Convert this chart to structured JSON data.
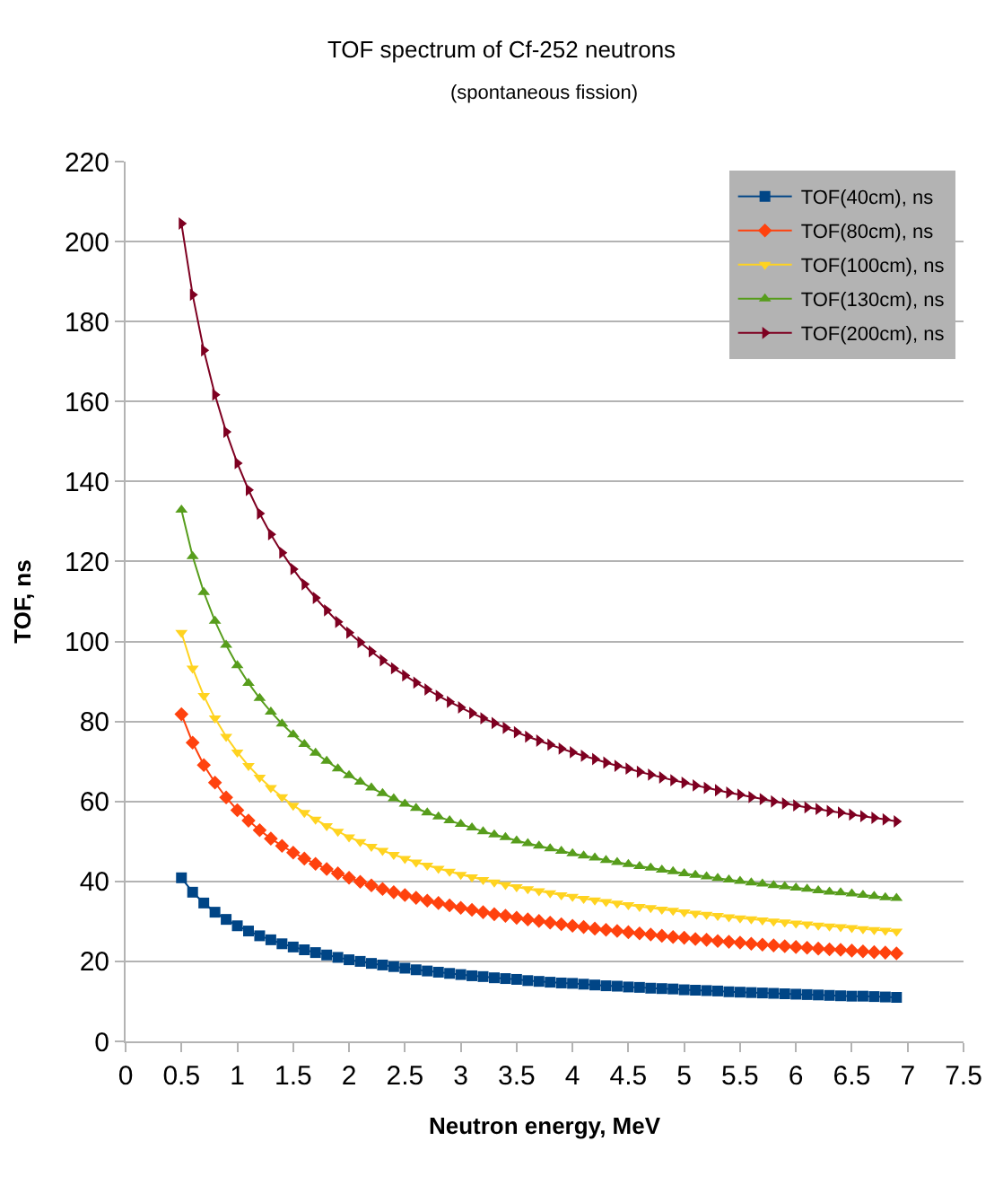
{
  "chart_data": {
    "type": "line",
    "title": "TOF spectrum of Cf-252 neutrons",
    "subtitle": "(spontaneous fission)",
    "xlabel": "Neutron energy, MeV",
    "ylabel": "TOF, ns",
    "x": [
      0.5,
      0.6,
      0.7,
      0.8,
      0.9,
      1.0,
      1.1,
      1.2,
      1.3,
      1.4,
      1.5,
      1.6,
      1.7,
      1.8,
      1.9,
      2.0,
      2.1,
      2.2,
      2.3,
      2.4,
      2.5,
      2.6,
      2.7,
      2.8,
      2.9,
      3.0,
      3.1,
      3.2,
      3.3,
      3.4,
      3.5,
      3.6,
      3.7,
      3.8,
      3.9,
      4.0,
      4.1,
      4.2,
      4.3,
      4.4,
      4.5,
      4.6,
      4.7,
      4.8,
      4.9,
      5.0,
      5.1,
      5.2,
      5.3,
      5.4,
      5.5,
      5.6,
      5.7,
      5.8,
      5.9,
      6.0,
      6.1,
      6.2,
      6.3,
      6.4,
      6.5,
      6.6,
      6.7,
      6.8,
      6.9
    ],
    "series": [
      {
        "name": "TOF(40cm), ns",
        "color": "#004586",
        "marker": "square",
        "values": [
          40.9,
          37.3,
          34.6,
          32.3,
          30.5,
          28.9,
          27.6,
          26.4,
          25.4,
          24.4,
          23.6,
          22.9,
          22.2,
          21.6,
          21.0,
          20.4,
          20.0,
          19.5,
          19.1,
          18.7,
          18.3,
          17.9,
          17.6,
          17.3,
          17.0,
          16.7,
          16.4,
          16.2,
          15.9,
          15.7,
          15.5,
          15.2,
          15.0,
          14.8,
          14.6,
          14.5,
          14.3,
          14.1,
          13.9,
          13.8,
          13.6,
          13.5,
          13.3,
          13.2,
          13.1,
          12.9,
          12.8,
          12.7,
          12.6,
          12.4,
          12.3,
          12.2,
          12.1,
          12.0,
          11.9,
          11.8,
          11.7,
          11.6,
          11.5,
          11.4,
          11.3,
          11.3,
          11.2,
          11.1,
          11.0
        ]
      },
      {
        "name": "TOF(80cm), ns",
        "color": "#ff420e",
        "marker": "diamond",
        "values": [
          81.8,
          74.7,
          69.1,
          64.7,
          61.0,
          57.8,
          55.2,
          52.8,
          50.7,
          48.9,
          47.2,
          45.7,
          44.4,
          43.1,
          42.0,
          40.9,
          39.9,
          39.0,
          38.1,
          37.3,
          36.6,
          35.9,
          35.2,
          34.6,
          34.0,
          33.4,
          32.9,
          32.3,
          31.8,
          31.4,
          30.9,
          30.5,
          30.1,
          29.7,
          29.3,
          28.9,
          28.6,
          28.2,
          27.9,
          27.6,
          27.3,
          27.0,
          26.7,
          26.4,
          26.1,
          25.9,
          25.6,
          25.4,
          25.1,
          24.9,
          24.7,
          24.4,
          24.2,
          24.0,
          23.8,
          23.6,
          23.4,
          23.2,
          23.0,
          22.9,
          22.7,
          22.5,
          22.3,
          22.2,
          22.0
        ]
      },
      {
        "name": "TOF(100cm), ns",
        "color": "#ffd320",
        "marker": "triangle-down",
        "values": [
          102.2,
          93.3,
          86.4,
          80.8,
          76.2,
          72.3,
          68.9,
          66.0,
          63.4,
          61.1,
          59.0,
          57.2,
          55.5,
          53.9,
          52.5,
          51.1,
          49.9,
          48.7,
          47.7,
          46.7,
          45.7,
          44.8,
          44.0,
          43.2,
          42.5,
          41.7,
          41.1,
          40.4,
          39.8,
          39.2,
          38.6,
          38.1,
          37.6,
          37.1,
          36.6,
          36.2,
          35.7,
          35.3,
          34.9,
          34.5,
          34.1,
          33.7,
          33.4,
          33.0,
          32.7,
          32.3,
          32.0,
          31.7,
          31.4,
          31.1,
          30.8,
          30.6,
          30.3,
          30.0,
          29.8,
          29.5,
          29.3,
          29.0,
          28.8,
          28.6,
          28.4,
          28.1,
          27.9,
          27.7,
          27.5
        ]
      },
      {
        "name": "TOF(130cm), ns",
        "color": "#579d1c",
        "marker": "triangle",
        "values": [
          132.9,
          121.3,
          112.3,
          105.1,
          99.1,
          94.0,
          89.6,
          85.8,
          82.4,
          79.4,
          76.7,
          74.3,
          72.1,
          70.1,
          68.2,
          66.5,
          64.9,
          63.4,
          62.0,
          60.7,
          59.4,
          58.3,
          57.2,
          56.2,
          55.2,
          54.3,
          53.4,
          52.5,
          51.7,
          51.0,
          50.2,
          49.5,
          48.9,
          48.2,
          47.6,
          47.0,
          46.4,
          45.9,
          45.3,
          44.8,
          44.3,
          43.8,
          43.4,
          42.9,
          42.5,
          42.0,
          41.6,
          41.2,
          40.8,
          40.4,
          40.1,
          39.7,
          39.4,
          39.0,
          38.7,
          38.4,
          38.1,
          37.7,
          37.4,
          37.2,
          36.9,
          36.6,
          36.3,
          36.0,
          35.8
        ]
      },
      {
        "name": "TOF(200cm), ns",
        "color": "#7e0021",
        "marker": "triangle-right",
        "values": [
          204.5,
          186.7,
          172.8,
          161.7,
          152.4,
          144.6,
          137.9,
          132.0,
          126.8,
          122.2,
          118.1,
          114.3,
          110.9,
          107.8,
          104.9,
          102.2,
          99.8,
          97.5,
          95.3,
          93.3,
          91.5,
          89.7,
          88.0,
          86.4,
          84.9,
          83.5,
          82.1,
          80.8,
          79.6,
          78.4,
          77.3,
          76.2,
          75.2,
          74.2,
          73.2,
          72.3,
          71.4,
          70.6,
          69.7,
          68.9,
          68.2,
          67.4,
          66.7,
          66.0,
          65.3,
          64.7,
          64.0,
          63.4,
          62.8,
          62.2,
          61.7,
          61.1,
          60.6,
          60.0,
          59.5,
          59.0,
          58.5,
          58.1,
          57.6,
          57.2,
          56.7,
          56.3,
          55.9,
          55.5,
          55.0
        ]
      }
    ],
    "xlim": [
      0,
      7.5
    ],
    "xticks": [
      0,
      0.5,
      1,
      1.5,
      2,
      2.5,
      3,
      3.5,
      4,
      4.5,
      5,
      5.5,
      6,
      6.5,
      7,
      7.5
    ],
    "ylim": [
      0,
      220
    ],
    "yticks": [
      0,
      20,
      40,
      60,
      80,
      100,
      120,
      140,
      160,
      180,
      200,
      220
    ],
    "grid": "y",
    "legend": "top right",
    "line_style": "solid"
  }
}
